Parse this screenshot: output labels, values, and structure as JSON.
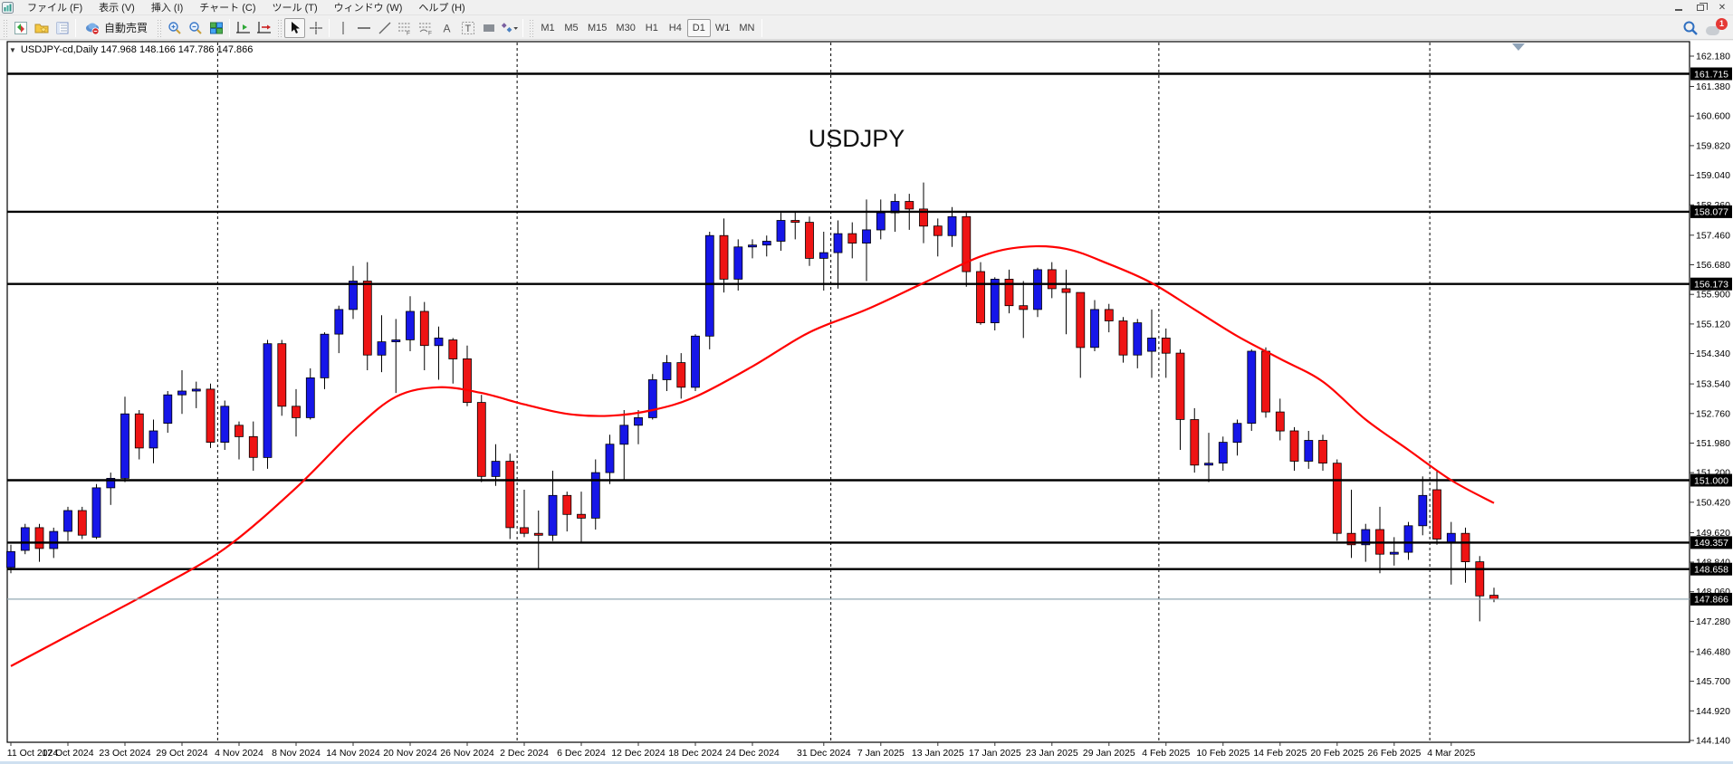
{
  "menu_bar": {
    "items": [
      {
        "label": "ファイル (F)"
      },
      {
        "label": "表示 (V)"
      },
      {
        "label": "挿入 (I)"
      },
      {
        "label": "チャート (C)"
      },
      {
        "label": "ツール (T)"
      },
      {
        "label": "ウィンドウ (W)"
      },
      {
        "label": "ヘルプ (H)"
      }
    ]
  },
  "toolbar": {
    "auto_trading_label": "自動売買",
    "timeframes": [
      "M1",
      "M5",
      "M15",
      "M30",
      "H1",
      "H4",
      "D1",
      "W1",
      "MN"
    ],
    "active_timeframe": "D1",
    "notification_badge": "1"
  },
  "chart": {
    "legend": "USDJPY-cd,Daily  147.968 148.166 147.786 147.866",
    "title": "USDJPY"
  },
  "chart_data": {
    "type": "candlestick",
    "symbol": "USDJPY-cd",
    "timeframe": "Daily",
    "title": "USDJPY",
    "ohlc_legend": {
      "open": "147.968",
      "high": "148.166",
      "low": "147.786",
      "close": "147.866"
    },
    "current_price": "147.866",
    "ylim": [
      144.14,
      162.56
    ],
    "grid": "off",
    "y_ticks": [
      "162.180",
      "161.380",
      "160.600",
      "159.820",
      "159.040",
      "158.260",
      "157.460",
      "156.680",
      "155.900",
      "155.120",
      "154.340",
      "153.540",
      "152.760",
      "151.980",
      "151.200",
      "150.420",
      "149.620",
      "148.840",
      "148.060",
      "147.280",
      "146.480",
      "145.700",
      "144.920",
      "144.140"
    ],
    "hlines": [
      {
        "price": 161.715,
        "label": "161.715"
      },
      {
        "price": 158.077,
        "label": "158.077"
      },
      {
        "price": 156.173,
        "label": "156.173"
      },
      {
        "price": 151.0,
        "label": "151.000"
      },
      {
        "price": 149.357,
        "label": "149.357"
      },
      {
        "price": 148.658,
        "label": "148.658"
      }
    ],
    "x_tick_labels": [
      "11 Oct 2024",
      "17 Oct 2024",
      "23 Oct 2024",
      "29 Oct 2024",
      "4 Nov 2024",
      "8 Nov 2024",
      "14 Nov 2024",
      "20 Nov 2024",
      "26 Nov 2024",
      "2 Dec 2024",
      "6 Dec 2024",
      "12 Dec 2024",
      "18 Dec 2024",
      "24 Dec 2024",
      "31 Dec 2024",
      "7 Jan 2025",
      "13 Jan 2025",
      "17 Jan 2025",
      "23 Jan 2025",
      "29 Jan 2025",
      "4 Feb 2025",
      "10 Feb 2025",
      "14 Feb 2025",
      "20 Feb 2025",
      "26 Feb 2025",
      "4 Mar 2025"
    ],
    "x_tick_indices": [
      0,
      4,
      8,
      12,
      16,
      20,
      24,
      28,
      32,
      36,
      40,
      44,
      48,
      52,
      57,
      61,
      65,
      69,
      73,
      77,
      81,
      85,
      89,
      93,
      97,
      101
    ],
    "month_separator_indices": [
      15,
      36,
      58,
      81,
      100
    ],
    "candles": [
      [
        148.7,
        149.3,
        148.55,
        149.12
      ],
      [
        149.15,
        149.85,
        149.05,
        149.75
      ],
      [
        149.75,
        149.85,
        148.85,
        149.2
      ],
      [
        149.2,
        149.75,
        148.95,
        149.65
      ],
      [
        149.65,
        150.3,
        149.4,
        150.2
      ],
      [
        150.2,
        150.3,
        149.45,
        149.55
      ],
      [
        149.5,
        150.9,
        149.45,
        150.8
      ],
      [
        150.8,
        151.2,
        150.35,
        151.05
      ],
      [
        151.05,
        153.2,
        150.95,
        152.75
      ],
      [
        152.75,
        152.85,
        151.55,
        151.85
      ],
      [
        151.85,
        152.6,
        151.45,
        152.3
      ],
      [
        152.5,
        153.35,
        152.25,
        153.25
      ],
      [
        153.25,
        153.9,
        152.75,
        153.35
      ],
      [
        153.35,
        153.6,
        152.9,
        153.4
      ],
      [
        153.4,
        153.55,
        151.85,
        152.0
      ],
      [
        152.0,
        153.1,
        151.8,
        152.95
      ],
      [
        152.45,
        152.55,
        151.55,
        152.15
      ],
      [
        152.15,
        152.55,
        151.25,
        151.6
      ],
      [
        151.6,
        154.7,
        151.3,
        154.6
      ],
      [
        154.6,
        154.7,
        152.7,
        152.95
      ],
      [
        152.95,
        153.4,
        152.15,
        152.65
      ],
      [
        152.65,
        153.95,
        152.6,
        153.7
      ],
      [
        153.7,
        154.9,
        153.4,
        154.85
      ],
      [
        154.85,
        155.6,
        154.35,
        155.5
      ],
      [
        155.5,
        156.65,
        155.25,
        156.25
      ],
      [
        156.25,
        156.75,
        153.9,
        154.3
      ],
      [
        154.3,
        155.35,
        153.85,
        154.65
      ],
      [
        154.65,
        155.25,
        153.3,
        154.7
      ],
      [
        154.7,
        155.85,
        154.4,
        155.45
      ],
      [
        155.45,
        155.7,
        153.9,
        154.55
      ],
      [
        154.55,
        155.05,
        153.65,
        154.75
      ],
      [
        154.7,
        154.75,
        153.55,
        154.2
      ],
      [
        154.2,
        154.55,
        152.95,
        153.05
      ],
      [
        153.05,
        153.25,
        150.95,
        151.1
      ],
      [
        151.1,
        151.95,
        150.85,
        151.5
      ],
      [
        151.5,
        151.7,
        149.45,
        149.75
      ],
      [
        149.75,
        150.75,
        149.5,
        149.6
      ],
      [
        149.6,
        150.2,
        148.65,
        149.55
      ],
      [
        149.55,
        151.25,
        149.4,
        150.6
      ],
      [
        150.6,
        150.7,
        149.65,
        150.1
      ],
      [
        150.1,
        150.7,
        149.35,
        150.0
      ],
      [
        150.0,
        151.55,
        149.7,
        151.2
      ],
      [
        151.2,
        152.2,
        150.9,
        151.95
      ],
      [
        151.95,
        152.85,
        151.0,
        152.45
      ],
      [
        152.45,
        152.85,
        151.95,
        152.65
      ],
      [
        152.65,
        153.8,
        152.6,
        153.65
      ],
      [
        153.65,
        154.3,
        153.35,
        154.1
      ],
      [
        154.1,
        154.35,
        153.15,
        153.45
      ],
      [
        153.45,
        154.85,
        153.35,
        154.8
      ],
      [
        154.8,
        157.55,
        154.45,
        157.45
      ],
      [
        157.45,
        157.9,
        155.95,
        156.3
      ],
      [
        156.3,
        157.35,
        156.0,
        157.15
      ],
      [
        157.15,
        157.35,
        156.85,
        157.2
      ],
      [
        157.2,
        157.45,
        156.9,
        157.3
      ],
      [
        157.3,
        158.05,
        157.05,
        157.85
      ],
      [
        157.85,
        158.08,
        157.35,
        157.8
      ],
      [
        157.8,
        157.95,
        156.65,
        156.85
      ],
      [
        156.85,
        157.55,
        156.0,
        157.0
      ],
      [
        157.0,
        157.85,
        156.05,
        157.5
      ],
      [
        157.5,
        157.8,
        156.85,
        157.25
      ],
      [
        157.25,
        158.4,
        156.25,
        157.6
      ],
      [
        157.6,
        158.4,
        157.35,
        158.05
      ],
      [
        158.05,
        158.55,
        157.55,
        158.35
      ],
      [
        158.35,
        158.55,
        157.6,
        158.15
      ],
      [
        158.15,
        158.85,
        157.25,
        157.7
      ],
      [
        157.7,
        157.9,
        156.9,
        157.45
      ],
      [
        157.45,
        158.2,
        157.15,
        157.95
      ],
      [
        157.95,
        158.05,
        156.1,
        156.5
      ],
      [
        156.5,
        156.75,
        155.1,
        155.15
      ],
      [
        155.15,
        156.35,
        154.95,
        156.3
      ],
      [
        156.3,
        156.55,
        155.4,
        155.6
      ],
      [
        155.6,
        156.25,
        154.75,
        155.5
      ],
      [
        155.5,
        156.6,
        155.3,
        156.55
      ],
      [
        156.55,
        156.75,
        155.8,
        156.05
      ],
      [
        156.05,
        156.55,
        154.85,
        155.95
      ],
      [
        155.95,
        155.95,
        153.7,
        154.5
      ],
      [
        154.5,
        155.75,
        154.4,
        155.5
      ],
      [
        155.5,
        155.65,
        154.9,
        155.2
      ],
      [
        155.2,
        155.3,
        154.1,
        154.3
      ],
      [
        154.3,
        155.25,
        153.95,
        155.15
      ],
      [
        154.4,
        155.5,
        153.7,
        154.75
      ],
      [
        154.75,
        155.0,
        153.7,
        154.35
      ],
      [
        154.35,
        154.45,
        151.8,
        152.6
      ],
      [
        152.6,
        152.9,
        151.2,
        151.4
      ],
      [
        151.4,
        152.25,
        150.95,
        151.45
      ],
      [
        151.45,
        152.15,
        151.25,
        152.0
      ],
      [
        152.0,
        152.6,
        151.65,
        152.5
      ],
      [
        152.5,
        154.45,
        152.3,
        154.4
      ],
      [
        154.4,
        154.5,
        152.65,
        152.8
      ],
      [
        152.8,
        153.15,
        152.05,
        152.3
      ],
      [
        152.3,
        152.4,
        151.25,
        151.5
      ],
      [
        151.5,
        152.3,
        151.3,
        152.05
      ],
      [
        152.05,
        152.2,
        151.25,
        151.45
      ],
      [
        151.45,
        151.55,
        149.4,
        149.6
      ],
      [
        149.6,
        150.75,
        148.95,
        149.3
      ],
      [
        149.3,
        149.85,
        148.85,
        149.7
      ],
      [
        149.7,
        150.3,
        148.55,
        149.05
      ],
      [
        149.05,
        149.5,
        148.75,
        149.1
      ],
      [
        149.1,
        149.9,
        148.9,
        149.8
      ],
      [
        149.8,
        151.1,
        149.55,
        150.6
      ],
      [
        150.75,
        151.25,
        149.3,
        149.45
      ],
      [
        149.35,
        149.9,
        148.25,
        149.6
      ],
      [
        149.6,
        149.75,
        148.3,
        148.85
      ],
      [
        148.85,
        149.0,
        147.28,
        147.95
      ],
      [
        147.968,
        148.166,
        147.786,
        147.866
      ]
    ],
    "ma_line": {
      "color": "#ff0000",
      "points": [
        [
          0,
          146.1
        ],
        [
          5,
          147.1
        ],
        [
          10,
          148.1
        ],
        [
          15,
          149.2
        ],
        [
          20,
          150.8
        ],
        [
          24,
          152.3
        ],
        [
          27,
          153.2
        ],
        [
          30,
          153.45
        ],
        [
          33,
          153.3
        ],
        [
          36,
          153.0
        ],
        [
          39,
          152.75
        ],
        [
          42,
          152.7
        ],
        [
          45,
          152.85
        ],
        [
          48,
          153.2
        ],
        [
          52,
          154.0
        ],
        [
          56,
          154.9
        ],
        [
          60,
          155.5
        ],
        [
          64,
          156.2
        ],
        [
          68,
          156.9
        ],
        [
          71,
          157.15
        ],
        [
          74,
          157.1
        ],
        [
          77,
          156.7
        ],
        [
          80,
          156.2
        ],
        [
          83,
          155.5
        ],
        [
          86,
          154.8
        ],
        [
          89,
          154.2
        ],
        [
          92,
          153.6
        ],
        [
          95,
          152.6
        ],
        [
          98,
          151.8
        ],
        [
          101,
          151.0
        ],
        [
          104,
          150.4
        ]
      ]
    },
    "colors": {
      "bull": "#1616e8",
      "bear": "#ee1414",
      "wick": "#000000",
      "hline": "#000000",
      "price_line": "#93a8b4",
      "label_bg": "#000000",
      "label_fg": "#ffffff"
    }
  }
}
